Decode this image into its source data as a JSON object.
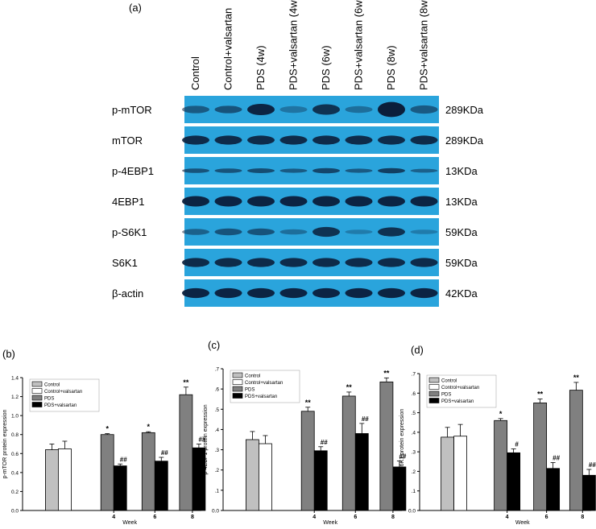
{
  "panel_a": {
    "letter": "(a)",
    "lanes": [
      "Control",
      "Control+valsartan",
      "PDS (4w)",
      "PDS+valsartan (4w)",
      "PDS (6w)",
      "PDS+valsartan (6w)",
      "PDS (8w)",
      "PDS+valsartan (8w)"
    ],
    "rows": [
      {
        "protein": "p-mTOR",
        "size": "289KDa",
        "intensity": [
          0.55,
          0.6,
          0.95,
          0.35,
          0.85,
          0.4,
          1.0,
          0.55
        ],
        "band_height": [
          0.5,
          0.5,
          0.75,
          0.45,
          0.7,
          0.45,
          1.0,
          0.55
        ]
      },
      {
        "protein": "mTOR",
        "size": "289KDa",
        "intensity": [
          0.9,
          0.9,
          0.9,
          0.9,
          0.9,
          0.9,
          0.9,
          0.9
        ],
        "band_height": [
          0.6,
          0.6,
          0.6,
          0.6,
          0.6,
          0.6,
          0.6,
          0.6
        ]
      },
      {
        "protein": "p-4EBP1",
        "size": "13KDa",
        "intensity": [
          0.6,
          0.6,
          0.65,
          0.55,
          0.7,
          0.55,
          0.75,
          0.5
        ],
        "band_height": [
          0.3,
          0.3,
          0.32,
          0.28,
          0.35,
          0.28,
          0.35,
          0.26
        ]
      },
      {
        "protein": "4EBP1",
        "size": "13KDa",
        "intensity": [
          0.95,
          0.95,
          0.95,
          0.95,
          0.95,
          0.95,
          0.95,
          0.95
        ],
        "band_height": [
          0.7,
          0.7,
          0.7,
          0.7,
          0.7,
          0.7,
          0.7,
          0.7
        ]
      },
      {
        "protein": "p-S6K1",
        "size": "59KDa",
        "intensity": [
          0.5,
          0.6,
          0.6,
          0.4,
          0.85,
          0.3,
          0.85,
          0.3
        ],
        "band_height": [
          0.4,
          0.45,
          0.45,
          0.35,
          0.65,
          0.3,
          0.6,
          0.3
        ]
      },
      {
        "protein": "S6K1",
        "size": "59KDa",
        "intensity": [
          0.9,
          0.9,
          0.9,
          0.9,
          0.9,
          0.9,
          0.9,
          0.9
        ],
        "band_height": [
          0.6,
          0.6,
          0.6,
          0.6,
          0.6,
          0.6,
          0.6,
          0.6
        ]
      },
      {
        "protein": "β-actin",
        "size": "42KDa",
        "intensity": [
          0.95,
          0.95,
          0.95,
          0.95,
          0.95,
          0.95,
          0.95,
          0.95
        ],
        "band_height": [
          0.65,
          0.65,
          0.65,
          0.65,
          0.65,
          0.65,
          0.65,
          0.65
        ]
      }
    ],
    "colors": {
      "membrane": "#2aa4dc",
      "band": "#0b1e3a"
    }
  },
  "chart_data": [
    {
      "type": "bar",
      "panel": "(b)",
      "xlabel": "Week",
      "ylabel": "p-mTOR protein expression",
      "ylim": [
        0,
        1.4
      ],
      "yticks": [
        "0.0",
        "0.2",
        "0.4",
        "0.6",
        "0.8",
        "1.0",
        "1.2",
        "1.4"
      ],
      "categories": [
        "",
        "4",
        "6",
        "8"
      ],
      "legend_position": "top-left",
      "series": [
        {
          "name": "Control",
          "color": "#c0c0c0",
          "values": [
            0.64,
            null,
            null,
            null
          ],
          "errors": [
            0.06,
            null,
            null,
            null
          ],
          "marks": [
            "",
            "",
            "",
            ""
          ]
        },
        {
          "name": "Control+valsartan",
          "color": "#ffffff",
          "values": [
            0.65,
            null,
            null,
            null
          ],
          "errors": [
            0.08,
            null,
            null,
            null
          ],
          "marks": [
            "",
            "",
            "",
            ""
          ]
        },
        {
          "name": "PDS",
          "color": "#808080",
          "values": [
            null,
            0.8,
            0.82,
            1.22
          ],
          "errors": [
            null,
            0.01,
            0.01,
            0.08
          ],
          "marks": [
            "",
            "*",
            "*",
            "**"
          ]
        },
        {
          "name": "PDS+valsartan",
          "color": "#000000",
          "values": [
            null,
            0.47,
            0.52,
            0.66
          ],
          "errors": [
            null,
            0.02,
            0.04,
            0.04
          ],
          "marks": [
            "",
            "##",
            "##",
            "##"
          ]
        }
      ]
    },
    {
      "type": "bar",
      "panel": "(c)",
      "xlabel": "Week",
      "ylabel": "p-4EBP1 protein expression",
      "ylim": [
        0,
        0.7
      ],
      "yticks": [
        "0.0",
        ".1",
        ".2",
        ".3",
        ".4",
        ".5",
        ".6",
        ".7"
      ],
      "categories": [
        "",
        "4",
        "6",
        "8"
      ],
      "legend_position": "top-left",
      "series": [
        {
          "name": "Control",
          "color": "#c0c0c0",
          "values": [
            0.35,
            null,
            null,
            null
          ],
          "errors": [
            0.04,
            null,
            null,
            null
          ],
          "marks": [
            "",
            "",
            "",
            ""
          ]
        },
        {
          "name": "Control+valsartan",
          "color": "#ffffff",
          "values": [
            0.33,
            null,
            null,
            null
          ],
          "errors": [
            0.04,
            null,
            null,
            null
          ],
          "marks": [
            "",
            "",
            "",
            ""
          ]
        },
        {
          "name": "PDS",
          "color": "#808080",
          "values": [
            null,
            0.49,
            0.565,
            0.635
          ],
          "errors": [
            null,
            0.02,
            0.02,
            0.02
          ],
          "marks": [
            "",
            "**",
            "**",
            "**"
          ]
        },
        {
          "name": "PDS+valsartan",
          "color": "#000000",
          "values": [
            null,
            0.295,
            0.38,
            0.215
          ],
          "errors": [
            null,
            0.02,
            0.05,
            0.03
          ],
          "marks": [
            "",
            "##",
            "##",
            "##"
          ]
        }
      ]
    },
    {
      "type": "bar",
      "panel": "(d)",
      "xlabel": "Week",
      "ylabel": "p-S6K1 protein expression",
      "ylim": [
        0,
        0.7
      ],
      "yticks": [
        "0.0",
        ".1",
        ".2",
        ".3",
        ".4",
        ".5",
        ".6",
        ".7"
      ],
      "categories": [
        "",
        "4",
        "6",
        "8"
      ],
      "legend_position": "top-left",
      "series": [
        {
          "name": "Control",
          "color": "#c0c0c0",
          "values": [
            0.375,
            null,
            null,
            null
          ],
          "errors": [
            0.05,
            null,
            null,
            null
          ],
          "marks": [
            "",
            "",
            "",
            ""
          ]
        },
        {
          "name": "Control+valsartan",
          "color": "#ffffff",
          "values": [
            0.38,
            null,
            null,
            null
          ],
          "errors": [
            0.06,
            null,
            null,
            null
          ],
          "marks": [
            "",
            "",
            "",
            ""
          ]
        },
        {
          "name": "PDS",
          "color": "#808080",
          "values": [
            null,
            0.46,
            0.55,
            0.615
          ],
          "errors": [
            null,
            0.01,
            0.02,
            0.04
          ],
          "marks": [
            "",
            "*",
            "**",
            "**"
          ]
        },
        {
          "name": "PDS+valsartan",
          "color": "#000000",
          "values": [
            null,
            0.295,
            0.215,
            0.18
          ],
          "errors": [
            null,
            0.02,
            0.03,
            0.03
          ],
          "marks": [
            "",
            "#",
            "##",
            "##"
          ]
        }
      ]
    }
  ]
}
